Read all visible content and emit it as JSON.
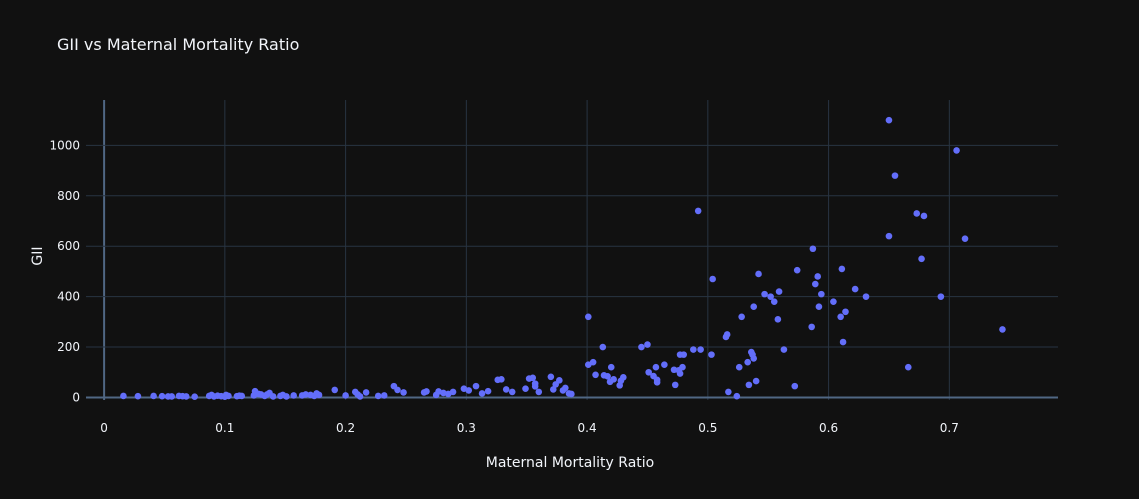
{
  "chart_data": {
    "type": "scatter",
    "title": "GII vs Maternal Mortality Ratio",
    "xlabel": "Maternal Mortality Ratio",
    "ylabel": "GII",
    "xlim": [
      -0.015,
      0.79
    ],
    "ylim": [
      -10,
      1180
    ],
    "xticks": [
      0,
      0.1,
      0.2,
      0.3,
      0.4,
      0.5,
      0.6,
      0.7
    ],
    "xtick_labels": [
      "0",
      "0.1",
      "0.2",
      "0.3",
      "0.4",
      "0.5",
      "0.6",
      "0.7"
    ],
    "yticks": [
      0,
      200,
      400,
      600,
      800,
      1000
    ],
    "ytick_labels": [
      "0",
      "200",
      "400",
      "600",
      "800",
      "1000"
    ],
    "grid": true,
    "colors": {
      "background": "#111111",
      "grid": "#283442",
      "zeroline": "#506784",
      "marker": "#636efa",
      "text": "#f2f5fa"
    },
    "points": [
      [
        0.016,
        6
      ],
      [
        0.028,
        5
      ],
      [
        0.041,
        6
      ],
      [
        0.048,
        5
      ],
      [
        0.053,
        4
      ],
      [
        0.056,
        4
      ],
      [
        0.062,
        6
      ],
      [
        0.065,
        5
      ],
      [
        0.068,
        4
      ],
      [
        0.075,
        3
      ],
      [
        0.087,
        6
      ],
      [
        0.089,
        10
      ],
      [
        0.091,
        4
      ],
      [
        0.094,
        7
      ],
      [
        0.097,
        5
      ],
      [
        0.1,
        3
      ],
      [
        0.101,
        10
      ],
      [
        0.103,
        6
      ],
      [
        0.11,
        5
      ],
      [
        0.112,
        7
      ],
      [
        0.114,
        6
      ],
      [
        0.124,
        8
      ],
      [
        0.125,
        25
      ],
      [
        0.128,
        14
      ],
      [
        0.13,
        12
      ],
      [
        0.133,
        6
      ],
      [
        0.135,
        12
      ],
      [
        0.137,
        18
      ],
      [
        0.14,
        4
      ],
      [
        0.146,
        6
      ],
      [
        0.148,
        10
      ],
      [
        0.151,
        4
      ],
      [
        0.157,
        8
      ],
      [
        0.164,
        8
      ],
      [
        0.167,
        12
      ],
      [
        0.171,
        10
      ],
      [
        0.174,
        6
      ],
      [
        0.176,
        16
      ],
      [
        0.178,
        10
      ],
      [
        0.191,
        30
      ],
      [
        0.2,
        8
      ],
      [
        0.208,
        22
      ],
      [
        0.21,
        12
      ],
      [
        0.212,
        4
      ],
      [
        0.217,
        20
      ],
      [
        0.227,
        6
      ],
      [
        0.232,
        8
      ],
      [
        0.24,
        45
      ],
      [
        0.243,
        30
      ],
      [
        0.248,
        20
      ],
      [
        0.265,
        20
      ],
      [
        0.267,
        24
      ],
      [
        0.275,
        10
      ],
      [
        0.277,
        24
      ],
      [
        0.281,
        18
      ],
      [
        0.285,
        14
      ],
      [
        0.289,
        22
      ],
      [
        0.298,
        35
      ],
      [
        0.302,
        28
      ],
      [
        0.308,
        45
      ],
      [
        0.313,
        16
      ],
      [
        0.318,
        25
      ],
      [
        0.326,
        70
      ],
      [
        0.329,
        72
      ],
      [
        0.333,
        32
      ],
      [
        0.338,
        22
      ],
      [
        0.349,
        35
      ],
      [
        0.352,
        75
      ],
      [
        0.355,
        78
      ],
      [
        0.357,
        44
      ],
      [
        0.357,
        55
      ],
      [
        0.36,
        22
      ],
      [
        0.37,
        82
      ],
      [
        0.372,
        32
      ],
      [
        0.374,
        52
      ],
      [
        0.377,
        68
      ],
      [
        0.38,
        28
      ],
      [
        0.382,
        38
      ],
      [
        0.385,
        16
      ],
      [
        0.387,
        14
      ],
      [
        0.401,
        320
      ],
      [
        0.401,
        130
      ],
      [
        0.405,
        140
      ],
      [
        0.407,
        90
      ],
      [
        0.413,
        200
      ],
      [
        0.414,
        88
      ],
      [
        0.417,
        84
      ],
      [
        0.419,
        62
      ],
      [
        0.42,
        120
      ],
      [
        0.422,
        72
      ],
      [
        0.427,
        48
      ],
      [
        0.428,
        66
      ],
      [
        0.43,
        80
      ],
      [
        0.445,
        200
      ],
      [
        0.45,
        210
      ],
      [
        0.451,
        100
      ],
      [
        0.455,
        85
      ],
      [
        0.457,
        120
      ],
      [
        0.458,
        70
      ],
      [
        0.458,
        60
      ],
      [
        0.464,
        130
      ],
      [
        0.472,
        110
      ],
      [
        0.473,
        50
      ],
      [
        0.476,
        108
      ],
      [
        0.477,
        95
      ],
      [
        0.477,
        170
      ],
      [
        0.479,
        120
      ],
      [
        0.48,
        170
      ],
      [
        0.488,
        190
      ],
      [
        0.492,
        740
      ],
      [
        0.494,
        190
      ],
      [
        0.503,
        170
      ],
      [
        0.504,
        470
      ],
      [
        0.515,
        240
      ],
      [
        0.516,
        250
      ],
      [
        0.517,
        22
      ],
      [
        0.524,
        5
      ],
      [
        0.526,
        120
      ],
      [
        0.528,
        320
      ],
      [
        0.533,
        140
      ],
      [
        0.534,
        50
      ],
      [
        0.536,
        180
      ],
      [
        0.537,
        170
      ],
      [
        0.538,
        155
      ],
      [
        0.538,
        360
      ],
      [
        0.54,
        65
      ],
      [
        0.542,
        490
      ],
      [
        0.547,
        410
      ],
      [
        0.552,
        400
      ],
      [
        0.555,
        380
      ],
      [
        0.558,
        310
      ],
      [
        0.559,
        420
      ],
      [
        0.563,
        190
      ],
      [
        0.572,
        45
      ],
      [
        0.574,
        505
      ],
      [
        0.586,
        280
      ],
      [
        0.587,
        590
      ],
      [
        0.589,
        450
      ],
      [
        0.591,
        480
      ],
      [
        0.592,
        360
      ],
      [
        0.594,
        410
      ],
      [
        0.604,
        380
      ],
      [
        0.61,
        320
      ],
      [
        0.611,
        510
      ],
      [
        0.612,
        220
      ],
      [
        0.614,
        340
      ],
      [
        0.622,
        430
      ],
      [
        0.631,
        400
      ],
      [
        0.65,
        640
      ],
      [
        0.65,
        1100
      ],
      [
        0.655,
        880
      ],
      [
        0.666,
        120
      ],
      [
        0.673,
        730
      ],
      [
        0.677,
        550
      ],
      [
        0.679,
        720
      ],
      [
        0.693,
        400
      ],
      [
        0.706,
        980
      ],
      [
        0.713,
        630
      ],
      [
        0.744,
        270
      ]
    ]
  }
}
